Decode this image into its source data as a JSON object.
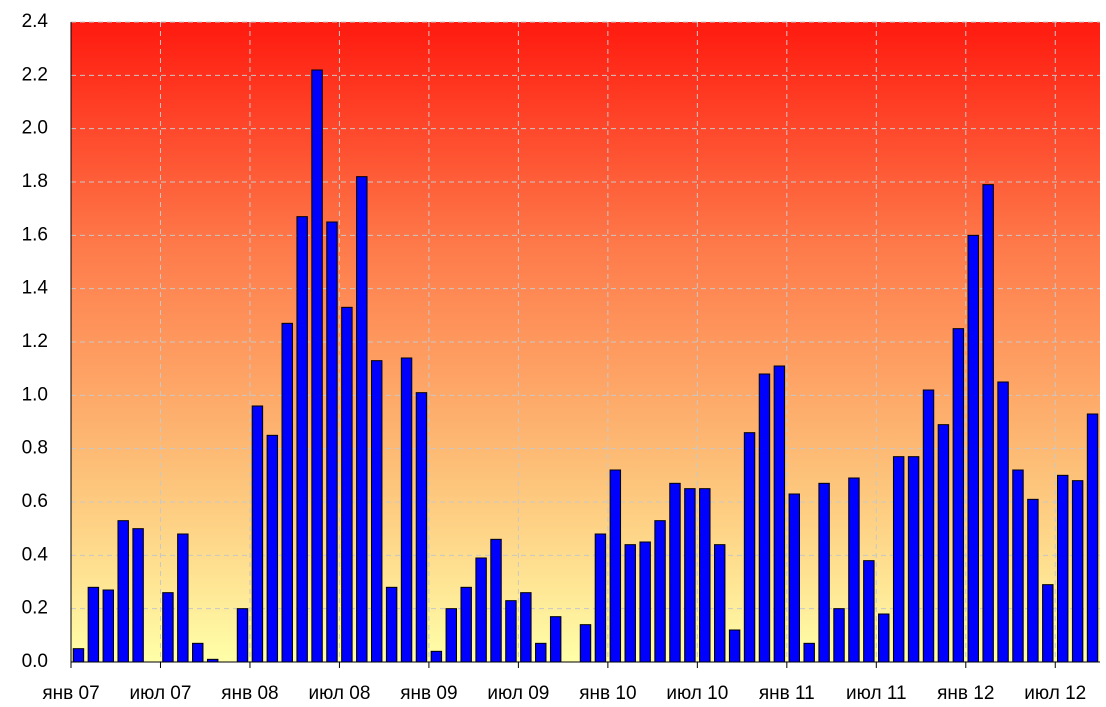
{
  "chart_data": {
    "type": "bar",
    "categories": [
      "янв 07",
      null,
      null,
      null,
      null,
      null,
      "июл 07",
      null,
      null,
      null,
      null,
      null,
      "янв 08",
      null,
      null,
      null,
      null,
      null,
      "июл 08",
      null,
      null,
      null,
      null,
      null,
      "янв 09",
      null,
      null,
      null,
      null,
      null,
      "июл 09",
      null,
      null,
      null,
      null,
      null,
      "янв 10",
      null,
      null,
      null,
      null,
      null,
      "июл 10",
      null,
      null,
      null,
      null,
      null,
      "янв 11",
      null,
      null,
      null,
      null,
      null,
      "июл 11",
      null,
      null,
      null,
      null,
      null,
      "янв 12",
      null,
      null,
      null,
      null,
      null,
      "июл 12",
      null,
      null
    ],
    "values": [
      0.05,
      0.28,
      0.27,
      0.53,
      0.5,
      0,
      0.26,
      0.48,
      0.07,
      0.01,
      0,
      0.2,
      0.96,
      0.85,
      1.27,
      1.67,
      2.22,
      1.65,
      1.33,
      1.82,
      1.13,
      0.28,
      1.14,
      1.01,
      0.04,
      0.2,
      0.28,
      0.39,
      0.46,
      0.23,
      0.26,
      0.07,
      0.17,
      0,
      0.14,
      0.48,
      0.72,
      0.44,
      0.45,
      0.53,
      0.67,
      0.65,
      0.65,
      0.44,
      0.12,
      0.86,
      1.08,
      1.11,
      0.63,
      0.07,
      0.67,
      0.2,
      0.69,
      0.38,
      0.18,
      0.77,
      0.77,
      1.02,
      0.89,
      1.25,
      1.6,
      1.79,
      1.05,
      0.72,
      0.61,
      0.29,
      0.7,
      0.68,
      0.93
    ],
    "color": "#0000ff",
    "ylim": [
      0,
      2.4
    ],
    "yticks": [
      {
        "value": 0,
        "label": "0.0"
      },
      0.2,
      0.4,
      0.6,
      0.8,
      {
        "value": 1,
        "label": "1.0"
      },
      1.2,
      1.4,
      1.6,
      1.8,
      {
        "value": 2,
        "label": "2.0"
      },
      2.2,
      2.4
    ],
    "grid": true
  }
}
